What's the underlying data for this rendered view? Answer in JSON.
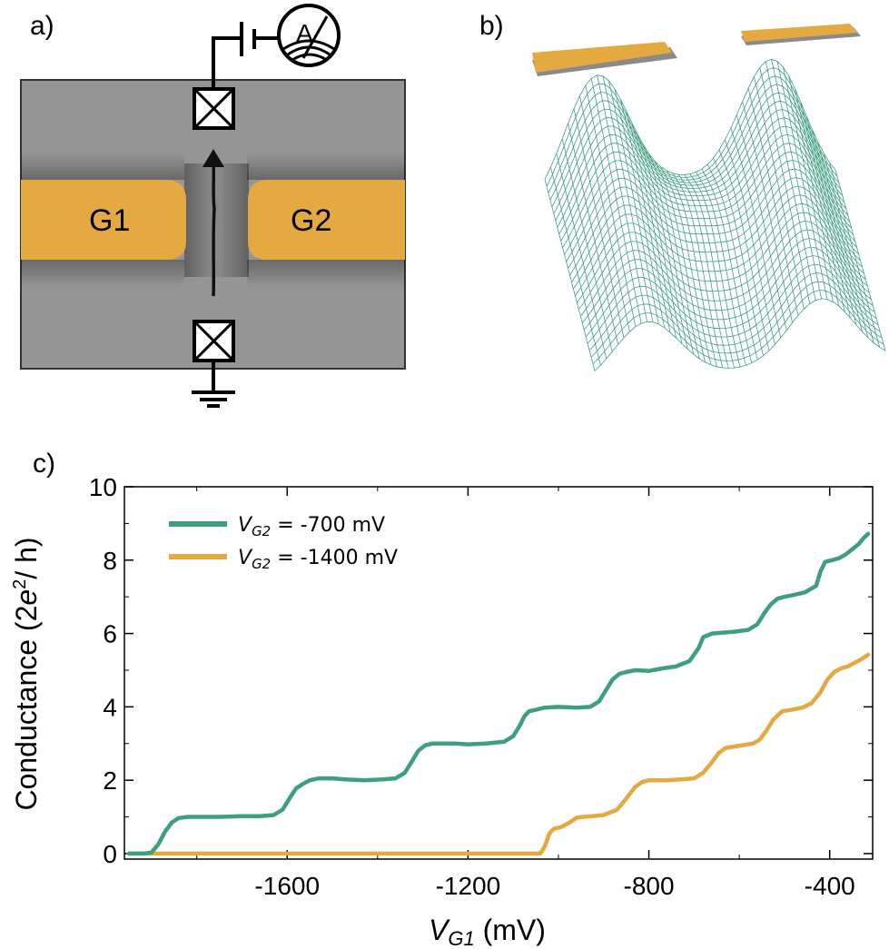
{
  "panel_a": {
    "label": "a)",
    "gate1_label": "G1",
    "gate2_label": "G2",
    "ammeter_label": "A",
    "colors": {
      "gate": "#E5A942",
      "substrate": "#959595",
      "frame": "#333333"
    },
    "icons": [
      "ammeter-icon",
      "battery-icon",
      "contact-icon",
      "ground-icon",
      "current-arrow-icon"
    ]
  },
  "panel_b": {
    "label": "b)",
    "colors": {
      "mesh": "#3E9F7E",
      "gate": "#E5A942",
      "gate_shadow": "#8a8a8a"
    }
  },
  "panel_c": {
    "label": "c)"
  },
  "chart_data": {
    "type": "line",
    "xlabel_main": "V",
    "xlabel_sub": "G1",
    "xlabel_unit": " (mV)",
    "ylabel_pre": "Conductance (2",
    "ylabel_e": "e",
    "ylabel_sup": "2",
    "ylabel_post": "/ h)",
    "xlim": [
      -1960,
      -305
    ],
    "ylim": [
      -0.15,
      10
    ],
    "x_ticks": [
      -1600,
      -1200,
      -800,
      -400
    ],
    "x_tick_labels": [
      "-1600",
      "-1200",
      "-800",
      "-400"
    ],
    "y_ticks": [
      0,
      2,
      4,
      6,
      8,
      10
    ],
    "y_tick_labels": [
      "0",
      "2",
      "4",
      "6",
      "8",
      "10"
    ],
    "legend_position": "top-left",
    "series": [
      {
        "legend_main": "V",
        "legend_sub": "G2",
        "legend_rest": " = -700 mV",
        "color": "#3E9F7E",
        "x": [
          -1950,
          -1915,
          -1900,
          -1885,
          -1870,
          -1855,
          -1840,
          -1820,
          -1790,
          -1750,
          -1700,
          -1660,
          -1630,
          -1610,
          -1595,
          -1580,
          -1565,
          -1550,
          -1530,
          -1500,
          -1470,
          -1430,
          -1390,
          -1360,
          -1340,
          -1325,
          -1310,
          -1295,
          -1280,
          -1260,
          -1230,
          -1200,
          -1160,
          -1120,
          -1100,
          -1085,
          -1075,
          -1065,
          -1050,
          -1030,
          -1000,
          -960,
          -930,
          -910,
          -895,
          -880,
          -865,
          -850,
          -830,
          -800,
          -770,
          -740,
          -710,
          -690,
          -680,
          -670,
          -660,
          -640,
          -610,
          -580,
          -560,
          -545,
          -530,
          -515,
          -500,
          -480,
          -455,
          -430,
          -420,
          -410,
          -395,
          -380,
          -365,
          -350,
          -335,
          -325,
          -315
        ],
        "y": [
          0,
          0,
          0.03,
          0.25,
          0.6,
          0.85,
          0.97,
          1.0,
          1.0,
          1.0,
          1.02,
          1.02,
          1.05,
          1.2,
          1.5,
          1.78,
          1.9,
          2.0,
          2.05,
          2.05,
          2.02,
          2.0,
          2.02,
          2.05,
          2.2,
          2.5,
          2.8,
          2.95,
          3.0,
          3.0,
          3.0,
          2.98,
          3.0,
          3.05,
          3.2,
          3.5,
          3.75,
          3.88,
          3.92,
          3.98,
          4.0,
          3.98,
          4.0,
          4.15,
          4.45,
          4.75,
          4.9,
          4.95,
          5.0,
          4.98,
          5.05,
          5.1,
          5.25,
          5.6,
          5.9,
          5.95,
          6.0,
          6.02,
          6.05,
          6.1,
          6.25,
          6.55,
          6.8,
          6.95,
          7.0,
          7.05,
          7.12,
          7.3,
          7.7,
          7.95,
          8.0,
          8.05,
          8.15,
          8.3,
          8.45,
          8.6,
          8.72
        ]
      },
      {
        "legend_main": "V",
        "legend_sub": "G2",
        "legend_rest": " = -1400 mV",
        "color": "#E5A942",
        "x": [
          -1950,
          -1600,
          -1200,
          -1040,
          -1030,
          -1020,
          -1010,
          -995,
          -975,
          -960,
          -945,
          -925,
          -900,
          -870,
          -850,
          -830,
          -815,
          -800,
          -780,
          -760,
          -730,
          -700,
          -680,
          -660,
          -645,
          -630,
          -610,
          -590,
          -570,
          -555,
          -540,
          -525,
          -505,
          -480,
          -460,
          -440,
          -420,
          -405,
          -390,
          -375,
          -360,
          -345,
          -330,
          -315
        ],
        "y": [
          0,
          0,
          0,
          0,
          0.2,
          0.55,
          0.68,
          0.72,
          0.85,
          0.98,
          1.0,
          1.02,
          1.05,
          1.2,
          1.5,
          1.82,
          1.95,
          2.0,
          2.0,
          2.0,
          2.02,
          2.05,
          2.2,
          2.5,
          2.75,
          2.88,
          2.92,
          2.96,
          3.0,
          3.1,
          3.35,
          3.65,
          3.88,
          3.93,
          3.98,
          4.1,
          4.4,
          4.75,
          4.95,
          5.05,
          5.1,
          5.2,
          5.3,
          5.42
        ]
      }
    ]
  }
}
